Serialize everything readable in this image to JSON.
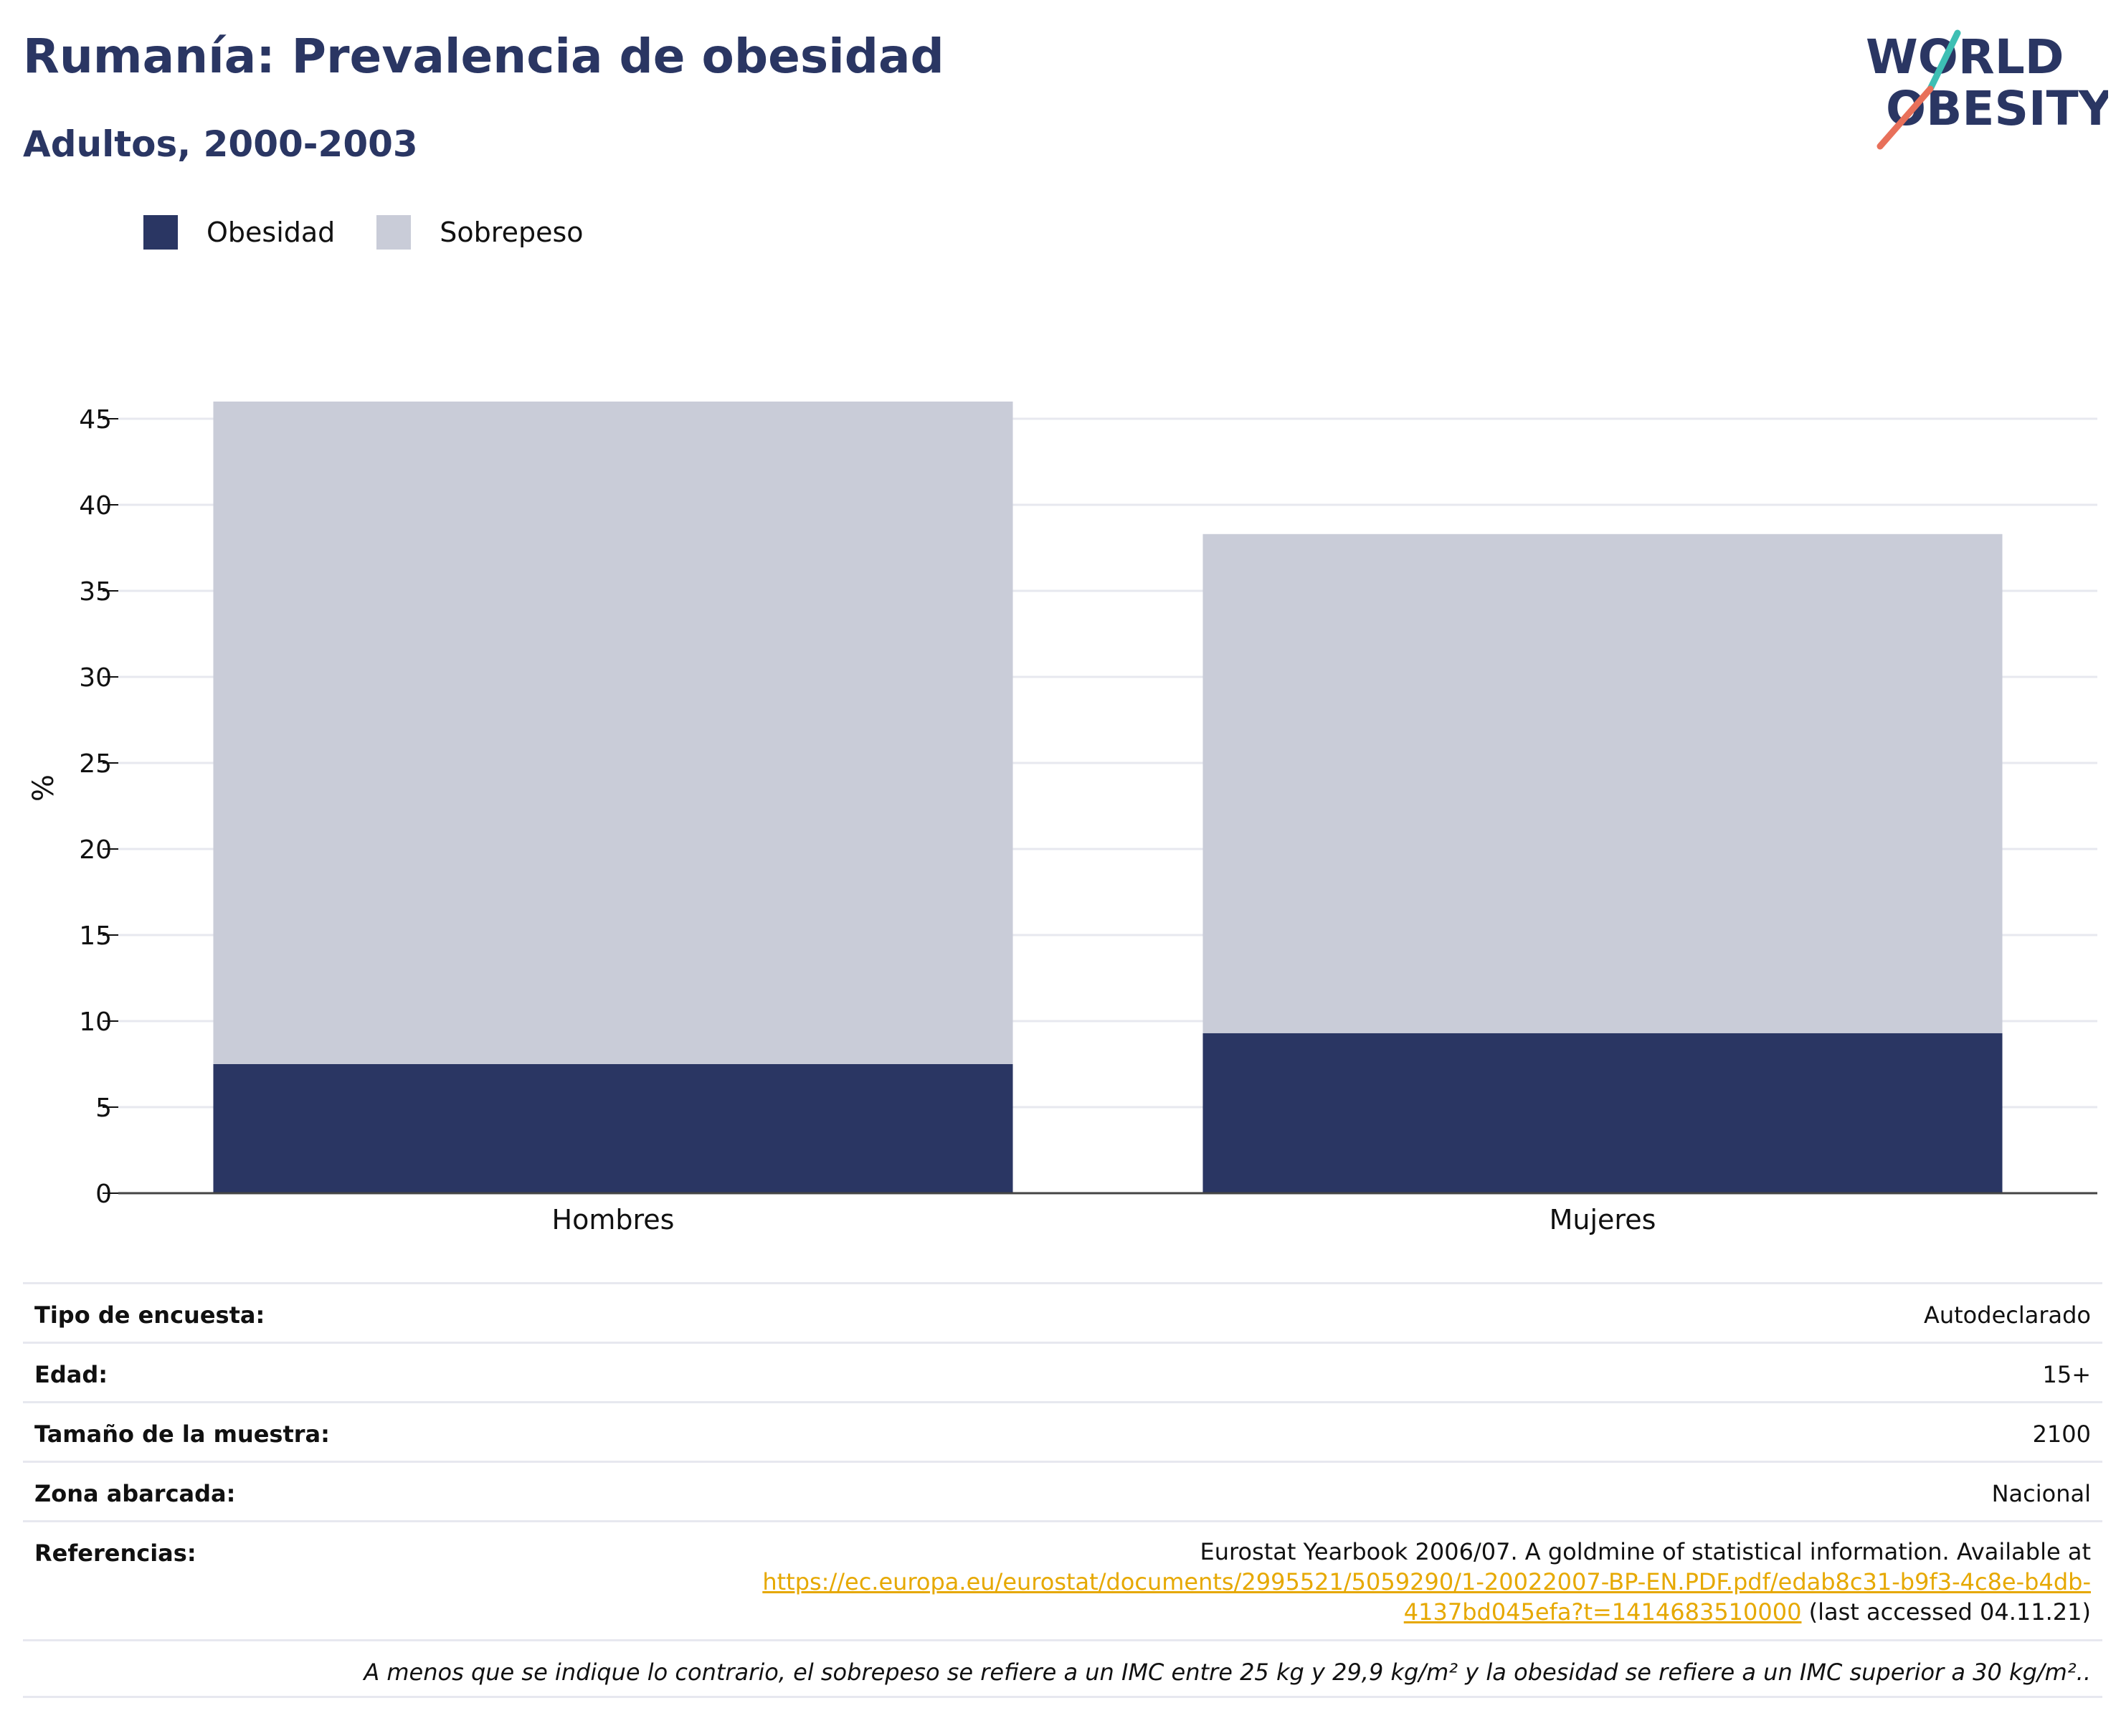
{
  "title": "Rumanía: Prevalencia de obesidad",
  "subtitle": "Adultos, 2000-2003",
  "logo": {
    "line1": "WORLD",
    "line2": "OBESITY"
  },
  "legend": [
    {
      "label": "Obesidad",
      "color": "#2a3663"
    },
    {
      "label": "Sobrepeso",
      "color": "#c9ccd8"
    }
  ],
  "chart_data": {
    "type": "bar",
    "stacked": true,
    "categories": [
      "Hombres",
      "Mujeres"
    ],
    "series": [
      {
        "name": "Obesidad",
        "values": [
          7.5,
          9.3
        ],
        "color": "#2a3663"
      },
      {
        "name": "Sobrepeso",
        "values": [
          38.5,
          29.0
        ],
        "color": "#c9ccd8"
      }
    ],
    "ylabel": "%",
    "ylim": [
      0,
      46
    ],
    "yticks": [
      0,
      5,
      10,
      15,
      20,
      25,
      30,
      35,
      40,
      45
    ],
    "grid": true
  },
  "info": {
    "survey_type": {
      "label": "Tipo de encuesta:",
      "value": "Autodeclarado"
    },
    "age": {
      "label": "Edad:",
      "value": "15+"
    },
    "sample_size": {
      "label": "Tamaño de la muestra:",
      "value": "2100"
    },
    "area": {
      "label": "Zona abarcada:",
      "value": "Nacional"
    },
    "references": {
      "label": "Referencias:",
      "line1": "Eurostat Yearbook 2006/07. A goldmine of statistical information. Available at",
      "link_part1": "https://ec.europa.eu/eurostat/documents/2995521/5059290/1-20022007-BP-EN.PDF.pdf/edab8c31-b9f3-4c8e-b4db-",
      "link_part2": "4137bd045efa?t=1414683510000",
      "accessed": " (last accessed 04.11.21)"
    }
  },
  "note": "A menos que se indique lo contrario, el sobrepeso se refiere a un IMC entre 25 kg y 29,9 kg/m² y la obesidad se refiere a un IMC superior a 30 kg/m²..",
  "colors": {
    "navy": "#2a3663",
    "grey": "#c9ccd8",
    "gridline": "#e7e8ef",
    "accent_teal": "#3dbfb4",
    "accent_coral": "#e8705a",
    "link": "#e6a800"
  }
}
